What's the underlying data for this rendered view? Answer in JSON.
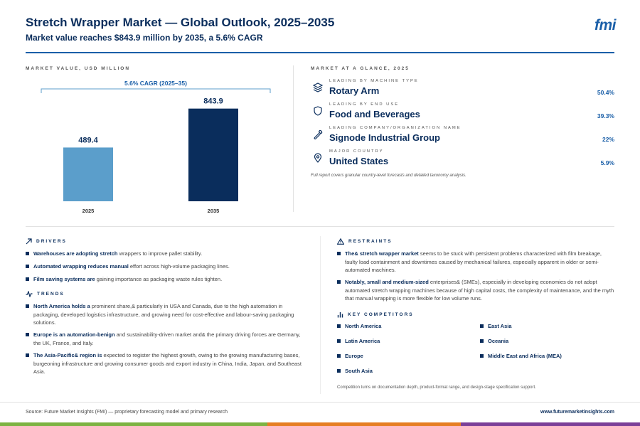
{
  "header": {
    "title": "Stretch Wrapper Market — Global Outlook, 2025–2035",
    "subtitle": "Market value reaches $843.9 million by 2035, a 5.6% CAGR",
    "logo": "fmi"
  },
  "chart_section": {
    "label": "MARKET VALUE, USD MILLION"
  },
  "chart_data": {
    "type": "bar",
    "categories": [
      "2025",
      "2035"
    ],
    "values": [
      489.4,
      843.9
    ],
    "value_labels": [
      "489.4",
      "843.9"
    ],
    "bar_colors": [
      "#5b9ecb",
      "#0a2d5c"
    ],
    "annotation": "5.6% CAGR (2025–35)",
    "ylim": [
      0,
      900
    ],
    "grid": false,
    "legend": "none",
    "title": "",
    "xlabel": "",
    "ylabel": ""
  },
  "glance": {
    "label": "MARKET AT A GLANCE, 2025",
    "items": [
      {
        "small": "LEADING BY MACHINE TYPE",
        "big": "Rotary Arm",
        "pct": "50.4%",
        "icon": "layers-icon"
      },
      {
        "small": "LEADING BY END USE",
        "big": "Food and Beverages",
        "pct": "39.3%",
        "icon": "shield-icon"
      },
      {
        "small": "LEADING COMPANY/ORGANIZATION NAME",
        "big": "Signode Industrial Group",
        "pct": "22%",
        "icon": "wrench-icon"
      },
      {
        "small": "MAJOR COUNTRY",
        "big": "United States",
        "pct": "5.9%",
        "icon": "location-pin-icon"
      }
    ],
    "note": "Full report covers granular country-level forecasts and detailed taxonomy analysis."
  },
  "drivers": {
    "title": "DRIVERS",
    "items": [
      {
        "bold": "Warehouses are adopting stretch",
        "rest": " wrappers to improve pallet stability."
      },
      {
        "bold": "Automated wrapping reduces manual",
        "rest": " effort across high-volume packaging lines."
      },
      {
        "bold": "Film saving systems are",
        "rest": " gaining importance as packaging waste rules tighten."
      }
    ]
  },
  "trends": {
    "title": "TRENDS",
    "items": [
      {
        "bold": "North America holds a",
        "rest": " prominent share,& particularly in USA and Canada, due to the high automation in packaging, developed logistics infrastructure, and growing need for cost-effective and labour-saving packaging solutions."
      },
      {
        "bold": "Europe is an automation-benign",
        "rest": " and sustainability-driven market and& the primary driving forces are Germany, the UK, France, and Italy."
      },
      {
        "bold": "The Asia-Pacific& region is",
        "rest": " expected to register the highest growth, owing to the growing manufacturing bases, burgeoning infrastructure and growing consumer goods and export industry in China, India, Japan, and Southeast Asia."
      }
    ]
  },
  "restraints": {
    "title": "RESTRAINTS",
    "items": [
      {
        "bold": "The& stretch wrapper market",
        "rest": " seems to be stuck with persistent problems characterized with film breakage, faulty load containment and downtimes caused by mechanical failures, especially apparent in older or semi-automated machines."
      },
      {
        "bold": "Notably, small and medium-sized",
        "rest": " enterprises& (SMEs), especially in developing economies do not adopt automated stretch wrapping machines because of high capital costs, the complexity of maintenance, and the myth that manual wrapping is more flexible for low volume runs."
      }
    ]
  },
  "competitors": {
    "title": "KEY COMPETITORS",
    "col1": [
      "North America",
      "Latin America",
      "Europe",
      "South Asia"
    ],
    "col2": [
      "East Asia",
      "Oceania",
      "Middle East and Africa (MEA)"
    ],
    "note": "Competition turns on documentation depth, product-format range, and design-stage specification support."
  },
  "footer": {
    "source": "Source: Future Market Insights (FMI) — proprietary forecasting model and primary research",
    "site": "www.futuremarketinsights.com"
  },
  "colors": {
    "navy": "#0a2d5c",
    "blue": "#1a5fa8",
    "light_blue": "#5b9ecb",
    "green": "#7cb342",
    "orange": "#e67e22",
    "purple": "#7b3f98"
  }
}
